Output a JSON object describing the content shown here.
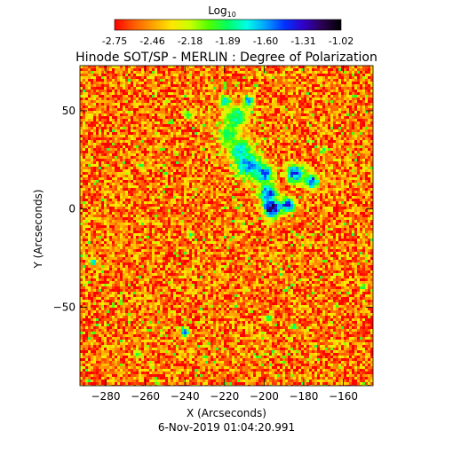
{
  "chart_data": {
    "type": "heatmap",
    "title": "Hinode SOT/SP - MERLIN : Degree of Polarization",
    "subtitle": "6-Nov-2019 01:04:20.991",
    "xlabel": "X (Arcseconds)",
    "ylabel": "Y (Arcseconds)",
    "xlim": [
      -293,
      -145
    ],
    "ylim": [
      -90,
      73
    ],
    "xticks": [
      -280,
      -260,
      -240,
      -220,
      -200,
      -180,
      -160
    ],
    "yticks": [
      -50,
      0,
      50
    ],
    "colorbar": {
      "label_base": "Log",
      "label_sub": "10",
      "range": [
        -2.75,
        -1.02
      ],
      "tick_labels": [
        "-2.75",
        "-2.46",
        "-2.18",
        "-1.89",
        "-1.60",
        "-1.31",
        "-1.02"
      ],
      "colors": [
        "#ff0000",
        "#ff5a00",
        "#ffa000",
        "#ffe600",
        "#c8ff00",
        "#50ff00",
        "#00ff64",
        "#00ffe6",
        "#00a0ff",
        "#0032ff",
        "#3200c8",
        "#2a0050",
        "#000000"
      ]
    },
    "background_level": -2.55,
    "features": [
      {
        "x": -214,
        "y": 47,
        "r": 6,
        "v": -1.75
      },
      {
        "x": -218,
        "y": 38,
        "r": 6,
        "v": -1.9
      },
      {
        "x": -212,
        "y": 30,
        "r": 6,
        "v": -1.7
      },
      {
        "x": -208,
        "y": 22,
        "r": 7,
        "v": -1.5
      },
      {
        "x": -200,
        "y": 18,
        "r": 5,
        "v": -1.45
      },
      {
        "x": -198,
        "y": 8,
        "r": 5,
        "v": -1.35
      },
      {
        "x": -196,
        "y": 0,
        "r": 5,
        "v": -1.1
      },
      {
        "x": -188,
        "y": 2,
        "r": 4,
        "v": -1.3
      },
      {
        "x": -184,
        "y": 18,
        "r": 5,
        "v": -1.35
      },
      {
        "x": -176,
        "y": 14,
        "r": 4,
        "v": -1.4
      },
      {
        "x": -220,
        "y": 55,
        "r": 3,
        "v": -1.6
      },
      {
        "x": -208,
        "y": 55,
        "r": 3,
        "v": -1.5
      },
      {
        "x": -238,
        "y": 48,
        "r": 2,
        "v": -1.7
      },
      {
        "x": -262,
        "y": 22,
        "r": 2,
        "v": -1.9
      },
      {
        "x": -237,
        "y": -13,
        "r": 2,
        "v": -1.8
      },
      {
        "x": -286,
        "y": -27,
        "r": 2,
        "v": -1.6
      },
      {
        "x": -240,
        "y": -63,
        "r": 2.5,
        "v": -1.5
      },
      {
        "x": -198,
        "y": -56,
        "r": 2,
        "v": -1.7
      },
      {
        "x": -185,
        "y": -60,
        "r": 2,
        "v": -1.8
      },
      {
        "x": -170,
        "y": 30,
        "r": 2,
        "v": -1.9
      },
      {
        "x": -150,
        "y": -40,
        "r": 2,
        "v": -1.9
      },
      {
        "x": -264,
        "y": -74,
        "r": 2,
        "v": -1.9
      }
    ]
  }
}
